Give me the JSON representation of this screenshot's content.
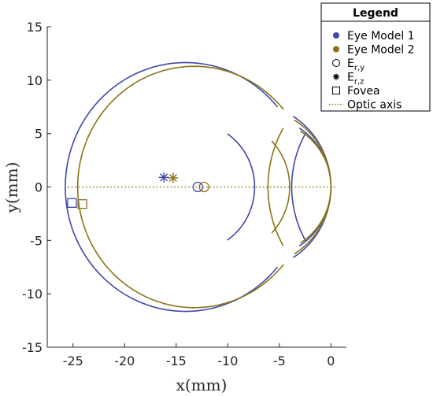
{
  "chart_data": {
    "type": "line",
    "title": "",
    "xlabel": "x(mm)",
    "ylabel": "y(mm)",
    "xlim": [
      -27.5,
      1.5
    ],
    "ylim": [
      -15,
      15
    ],
    "x_ticks": [
      -25,
      -20,
      -15,
      -10,
      -5,
      0
    ],
    "y_ticks": [
      -15,
      -10,
      -5,
      0,
      5,
      10,
      15
    ],
    "x_tick_labels": [
      "-25",
      "-20",
      "-15",
      "-10",
      "-5",
      "0"
    ],
    "y_tick_labels": [
      "-15",
      "-10",
      "-5",
      "0",
      "5",
      "10",
      "15"
    ],
    "grid": false,
    "legend_position": "top-right",
    "legend_title": "Legend",
    "colors": {
      "model1": "#3f48a8",
      "model2": "#8c7315",
      "axis": "#262626"
    },
    "series": [
      {
        "name": "Eye Model 1",
        "color": "#3f48a8",
        "arcs": [
          {
            "part": "retina",
            "center": [
              -14.1,
              0.0
            ],
            "radius": 11.65,
            "from_deg": 40,
            "to_deg": 320
          },
          {
            "part": "cornea-anterior",
            "center": [
              -7.8,
              0.0
            ],
            "radius": 7.8,
            "from_deg": -58,
            "to_deg": 58
          },
          {
            "part": "cornea-posterior",
            "center": [
              -6.5,
              0.0
            ],
            "radius": 6.5,
            "from_deg": -58,
            "to_deg": 58
          },
          {
            "part": "lens-anterior",
            "center": [
              6.3,
              0.0
            ],
            "radius": 10.1,
            "from_deg": 150,
            "to_deg": 210
          },
          {
            "part": "lens-posterior",
            "center": [
              -13.4,
              0.0
            ],
            "radius": 6.0,
            "from_deg": -56,
            "to_deg": 56
          }
        ],
        "points": [
          {
            "name": "Er,y",
            "marker": "circle",
            "x": -12.9,
            "y": 0.0
          },
          {
            "name": "Er,z",
            "marker": "asterisk",
            "x": -16.2,
            "y": 0.9
          },
          {
            "name": "Fovea",
            "marker": "square",
            "x": -25.1,
            "y": -1.5
          }
        ]
      },
      {
        "name": "Eye Model 2",
        "color": "#8c7315",
        "arcs": [
          {
            "part": "retina",
            "center": [
              -13.25,
              0.0
            ],
            "radius": 11.3,
            "from_deg": 40,
            "to_deg": 320
          },
          {
            "part": "cornea-anterior",
            "center": [
              -7.3,
              0.0
            ],
            "radius": 7.3,
            "from_deg": -59,
            "to_deg": 59
          },
          {
            "part": "cornea-posterior",
            "center": [
              -6.1,
              0.0
            ],
            "radius": 6.1,
            "from_deg": -59,
            "to_deg": 59
          },
          {
            "part": "lens-anterior",
            "center": [
              4.9,
              0.0
            ],
            "radius": 11.0,
            "from_deg": 150,
            "to_deg": 210
          },
          {
            "part": "lens-posterior",
            "center": [
              -10.2,
              0.0
            ],
            "radius": 6.2,
            "from_deg": -44,
            "to_deg": 44
          }
        ],
        "points": [
          {
            "name": "Er,y",
            "marker": "circle",
            "x": -12.3,
            "y": 0.0
          },
          {
            "name": "Er,z",
            "marker": "asterisk",
            "x": -15.3,
            "y": 0.85
          },
          {
            "name": "Fovea",
            "marker": "square",
            "x": -24.1,
            "y": -1.6
          }
        ]
      }
    ],
    "optic_axis": {
      "x": [
        -25.5,
        0.5
      ],
      "y": [
        0,
        0
      ],
      "style": "dotted"
    },
    "legend": [
      {
        "name": "Eye Model 1",
        "symbol": "filled-circle",
        "color": "#3f48a8"
      },
      {
        "name": "Eye Model 2",
        "symbol": "filled-circle",
        "color": "#8c7315"
      },
      {
        "name": "Er,y",
        "symbol": "open-circle",
        "color": "#000000"
      },
      {
        "name": "Er,z",
        "symbol": "asterisk",
        "color": "#000000"
      },
      {
        "name": "Fovea",
        "symbol": "open-square",
        "color": "#000000"
      },
      {
        "name": "Optic axis",
        "symbol": "dotted-line",
        "color": "#8c7315"
      }
    ]
  }
}
